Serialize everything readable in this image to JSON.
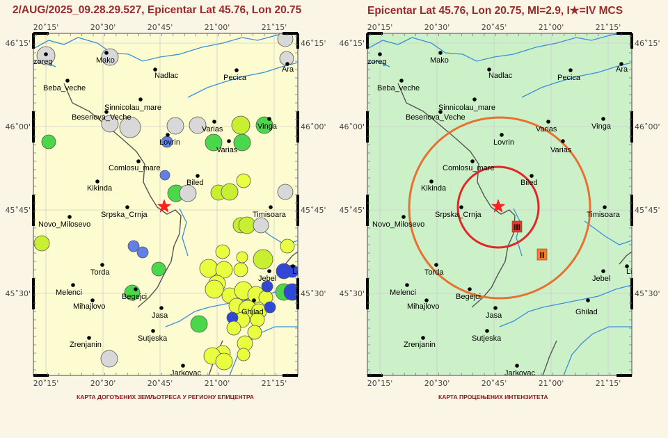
{
  "left_panel": {
    "title": "2/AUG/2025_09.28.29.527, Epicentar Lat 45.76, Lon 20.75",
    "caption": "КАРТА ДОГОЂЕНИХ ЗЕМЉОТРЕСА У РЕГИОНУ ЕПИЦЕНТРА"
  },
  "right_panel": {
    "title": "Epicentar Lat 45.76, Lon 20.75, Ml=2.9, I★=IV MCS",
    "caption": "КАРТА ПРОЦЕЊЕНИХ ИНТЕНЗИТЕТА",
    "zones": [
      {
        "label": "III",
        "color": "#e63a2a"
      },
      {
        "label": "II",
        "color": "#ff7a2a"
      }
    ]
  },
  "epicenter": {
    "lat": 45.76,
    "lon": 20.75
  },
  "axes": {
    "lon_ticks": [
      "20˚15'",
      "20˚30'",
      "20˚45'",
      "21˚00'",
      "21˚15'"
    ],
    "lat_ticks": [
      "46˚15'",
      "46˚00'",
      "45˚45'",
      "45˚30'"
    ]
  },
  "cities": [
    {
      "name": "zoreg"
    },
    {
      "name": "Mako"
    },
    {
      "name": "Nadlac"
    },
    {
      "name": "Pecica"
    },
    {
      "name": "Ara"
    },
    {
      "name": "Beba_veche"
    },
    {
      "name": "Sinnicolau_mare"
    },
    {
      "name": "Besenova_Veche"
    },
    {
      "name": "Varias"
    },
    {
      "name": "Vinga"
    },
    {
      "name": "Lovrin"
    },
    {
      "name": "Varias"
    },
    {
      "name": "Comlosu_mare"
    },
    {
      "name": "Biled"
    },
    {
      "name": "Kikinda"
    },
    {
      "name": "Srpska_Crnja"
    },
    {
      "name": "Timisoara"
    },
    {
      "name": "Novo_Milosevo"
    },
    {
      "name": "Lieb"
    },
    {
      "name": "Torda"
    },
    {
      "name": "Jebel"
    },
    {
      "name": "Melenci"
    },
    {
      "name": "Begejci"
    },
    {
      "name": "Mihajlovo"
    },
    {
      "name": "Ghilad"
    },
    {
      "name": "Jasa"
    },
    {
      "name": "Sutjeska"
    },
    {
      "name": "Zrenjanin"
    },
    {
      "name": "Jarkovac"
    }
  ],
  "colors": {
    "title": "#9a2a2a",
    "caption": "#8b1a1a",
    "left_map_bg": "#fdfbd0",
    "right_map_bg": "#ccf0c8",
    "epicenter_star": "#ff2020",
    "river": "#3a8fd8",
    "border": "#555555"
  }
}
